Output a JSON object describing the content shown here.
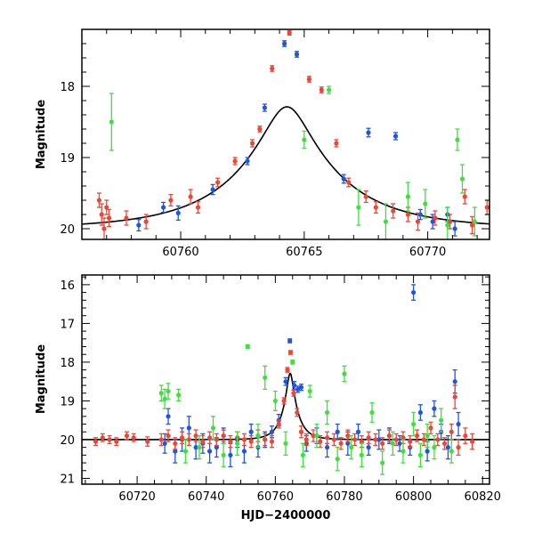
{
  "chart_data": [
    {
      "type": "scatter",
      "title": "",
      "xlabel": "",
      "ylabel": "Magnitude",
      "xlim": [
        60756,
        60772.5
      ],
      "ylim": [
        20.15,
        17.2
      ],
      "y_inverted": true,
      "xticks": [
        60760,
        60765,
        60770
      ],
      "yticks": [
        18,
        19,
        20
      ],
      "grid": false,
      "legend": "none",
      "model_curve": {
        "t0": 60764.3,
        "u0": 0.21,
        "tE": 4.2,
        "baseline": 20.0,
        "color": "#000000"
      },
      "series": [
        {
          "color": "#1f56e0",
          "points": [
            [
              60758.3,
              19.95,
              0.08
            ],
            [
              60759.3,
              19.7,
              0.07
            ],
            [
              60759.9,
              19.78,
              0.1
            ],
            [
              60761.3,
              19.45,
              0.07
            ],
            [
              60762.7,
              19.05,
              0.05
            ],
            [
              60763.4,
              18.3,
              0.05
            ],
            [
              60764.2,
              17.4,
              0.04
            ],
            [
              60764.7,
              17.55,
              0.04
            ],
            [
              60766.6,
              19.3,
              0.06
            ],
            [
              60767.6,
              18.65,
              0.06
            ],
            [
              60768.7,
              18.7,
              0.05
            ],
            [
              60769.7,
              19.8,
              0.07
            ],
            [
              60770.2,
              19.9,
              0.1
            ],
            [
              60770.8,
              19.8,
              0.1
            ],
            [
              60771.1,
              20.0,
              0.1
            ]
          ]
        },
        {
          "color": "#f04535",
          "points": [
            [
              60756.7,
              19.6,
              0.1
            ],
            [
              60756.8,
              19.8,
              0.15
            ],
            [
              60756.9,
              20.0,
              0.15
            ],
            [
              60757.0,
              19.7,
              0.1
            ],
            [
              60757.1,
              19.85,
              0.12
            ],
            [
              60757.8,
              19.85,
              0.1
            ],
            [
              60758.6,
              19.9,
              0.1
            ],
            [
              60759.6,
              19.6,
              0.08
            ],
            [
              60760.4,
              19.55,
              0.1
            ],
            [
              60760.7,
              19.7,
              0.08
            ],
            [
              60761.5,
              19.35,
              0.06
            ],
            [
              60762.2,
              19.05,
              0.05
            ],
            [
              60762.9,
              18.8,
              0.05
            ],
            [
              60763.2,
              18.6,
              0.04
            ],
            [
              60763.7,
              17.75,
              0.04
            ],
            [
              60764.4,
              17.25,
              0.03
            ],
            [
              60765.2,
              17.9,
              0.04
            ],
            [
              60765.7,
              18.05,
              0.04
            ],
            [
              60766.3,
              18.8,
              0.05
            ],
            [
              60766.8,
              19.35,
              0.06
            ],
            [
              60767.5,
              19.55,
              0.08
            ],
            [
              60767.9,
              19.7,
              0.08
            ],
            [
              60768.6,
              19.75,
              0.1
            ],
            [
              60769.2,
              19.8,
              0.1
            ],
            [
              60769.6,
              19.9,
              0.12
            ],
            [
              60770.3,
              19.85,
              0.1
            ],
            [
              60770.9,
              19.9,
              0.1
            ],
            [
              60771.5,
              19.55,
              0.1
            ],
            [
              60771.8,
              19.95,
              0.12
            ],
            [
              60772.4,
              19.7,
              0.1
            ]
          ]
        },
        {
          "color": "#3ee03e",
          "points": [
            [
              60757.2,
              18.5,
              0.4
            ],
            [
              60765.0,
              18.75,
              0.12
            ],
            [
              60766.0,
              18.05,
              0.05
            ],
            [
              60767.2,
              19.7,
              0.25
            ],
            [
              60768.3,
              19.9,
              0.25
            ],
            [
              60769.2,
              19.55,
              0.2
            ],
            [
              60769.9,
              19.65,
              0.2
            ],
            [
              60770.8,
              19.95,
              0.25
            ],
            [
              60771.2,
              18.75,
              0.15
            ],
            [
              60771.4,
              19.3,
              0.2
            ],
            [
              60771.9,
              19.9,
              0.2
            ]
          ]
        }
      ]
    },
    {
      "type": "scatter",
      "title": "",
      "xlabel": "HJD−2400000",
      "ylabel": "Magnitude",
      "xlim": [
        60704,
        60822
      ],
      "ylim": [
        21.15,
        15.75
      ],
      "y_inverted": true,
      "xticks": [
        60720,
        60740,
        60760,
        60780,
        60800,
        60820
      ],
      "yticks": [
        16,
        17,
        18,
        19,
        20,
        21
      ],
      "grid": false,
      "legend": "none",
      "model_curve": {
        "t0": 60764.3,
        "u0": 0.21,
        "tE": 4.2,
        "baseline": 20.0,
        "color": "#000000"
      },
      "series": [
        {
          "color": "#1f56e0",
          "points": [
            [
              60728,
              20.1,
              0.25
            ],
            [
              60729,
              19.4,
              0.2
            ],
            [
              60731,
              20.3,
              0.3
            ],
            [
              60733,
              20.0,
              0.3
            ],
            [
              60735,
              19.7,
              0.3
            ],
            [
              60737,
              20.2,
              0.3
            ],
            [
              60739,
              20.1,
              0.25
            ],
            [
              60741,
              20.3,
              0.3
            ],
            [
              60743,
              20.2,
              0.25
            ],
            [
              60745,
              19.9,
              0.2
            ],
            [
              60747,
              20.4,
              0.3
            ],
            [
              60749,
              20.0,
              0.2
            ],
            [
              60751,
              20.3,
              0.3
            ],
            [
              60753,
              19.8,
              0.2
            ],
            [
              60755,
              20.2,
              0.25
            ],
            [
              60757,
              20.0,
              0.2
            ],
            [
              60759,
              19.8,
              0.15
            ],
            [
              60761,
              19.5,
              0.15
            ],
            [
              60763,
              18.5,
              0.1
            ],
            [
              60764.2,
              17.45,
              0.05
            ],
            [
              60765.5,
              18.6,
              0.1
            ],
            [
              60766.5,
              18.7,
              0.08
            ],
            [
              60767.5,
              18.65,
              0.08
            ],
            [
              60769,
              20.1,
              0.2
            ],
            [
              60772,
              19.9,
              0.2
            ],
            [
              60775,
              20.2,
              0.25
            ],
            [
              60778,
              19.8,
              0.2
            ],
            [
              60781,
              20.1,
              0.3
            ],
            [
              60784,
              19.8,
              0.2
            ],
            [
              60787,
              20.2,
              0.2
            ],
            [
              60790,
              20.0,
              0.25
            ],
            [
              60793,
              19.9,
              0.2
            ],
            [
              60796,
              20.1,
              0.2
            ],
            [
              60799,
              20.2,
              0.2
            ],
            [
              60800,
              16.2,
              0.2
            ],
            [
              60802,
              19.3,
              0.2
            ],
            [
              60804,
              20.3,
              0.25
            ],
            [
              60806,
              19.2,
              0.2
            ],
            [
              60808,
              19.8,
              0.2
            ],
            [
              60810,
              20.2,
              0.3
            ],
            [
              60812,
              18.5,
              0.3
            ],
            [
              60813,
              19.6,
              0.3
            ]
          ]
        },
        {
          "color": "#f04535",
          "points": [
            [
              60708,
              20.05,
              0.1
            ],
            [
              60710,
              19.95,
              0.1
            ],
            [
              60712,
              20.0,
              0.1
            ],
            [
              60714,
              20.05,
              0.1
            ],
            [
              60717,
              19.9,
              0.1
            ],
            [
              60719,
              19.95,
              0.1
            ],
            [
              60723,
              20.05,
              0.12
            ],
            [
              60727,
              20.0,
              0.15
            ],
            [
              60729,
              19.9,
              0.15
            ],
            [
              60731,
              20.1,
              0.15
            ],
            [
              60733,
              19.95,
              0.15
            ],
            [
              60735,
              20.0,
              0.15
            ],
            [
              60737,
              19.9,
              0.15
            ],
            [
              60739,
              20.05,
              0.15
            ],
            [
              60741,
              19.95,
              0.15
            ],
            [
              60743,
              20.0,
              0.15
            ],
            [
              60745,
              19.9,
              0.15
            ],
            [
              60747,
              20.05,
              0.15
            ],
            [
              60749,
              19.95,
              0.15
            ],
            [
              60751,
              20.0,
              0.15
            ],
            [
              60753,
              20.05,
              0.15
            ],
            [
              60755,
              19.9,
              0.15
            ],
            [
              60757,
              20.0,
              0.15
            ],
            [
              60759,
              20.05,
              0.15
            ],
            [
              60761,
              19.6,
              0.1
            ],
            [
              60762.5,
              19.0,
              0.08
            ],
            [
              60763.5,
              18.2,
              0.06
            ],
            [
              60764.4,
              17.75,
              0.05
            ],
            [
              60765.3,
              18.8,
              0.08
            ],
            [
              60766.3,
              19.3,
              0.1
            ],
            [
              60767.5,
              19.8,
              0.15
            ],
            [
              60769,
              20.0,
              0.15
            ],
            [
              60771,
              19.9,
              0.15
            ],
            [
              60773,
              20.05,
              0.15
            ],
            [
              60775,
              19.95,
              0.15
            ],
            [
              60777,
              20.0,
              0.15
            ],
            [
              60779,
              20.1,
              0.15
            ],
            [
              60781,
              19.9,
              0.15
            ],
            [
              60783,
              20.0,
              0.15
            ],
            [
              60785,
              20.05,
              0.15
            ],
            [
              60787,
              19.95,
              0.15
            ],
            [
              60789,
              20.0,
              0.15
            ],
            [
              60791,
              20.1,
              0.15
            ],
            [
              60793,
              19.9,
              0.15
            ],
            [
              60795,
              20.0,
              0.15
            ],
            [
              60797,
              19.95,
              0.15
            ],
            [
              60799,
              20.05,
              0.15
            ],
            [
              60801,
              19.9,
              0.15
            ],
            [
              60803,
              20.0,
              0.15
            ],
            [
              60805,
              19.7,
              0.15
            ],
            [
              60807,
              20.0,
              0.15
            ],
            [
              60809,
              20.1,
              0.15
            ],
            [
              60811,
              19.8,
              0.2
            ],
            [
              60812,
              18.9,
              0.3
            ],
            [
              60813,
              20.2,
              0.2
            ],
            [
              60815,
              19.9,
              0.2
            ],
            [
              60817,
              20.05,
              0.2
            ]
          ]
        },
        {
          "color": "#3ee03e",
          "points": [
            [
              60727,
              18.8,
              0.2
            ],
            [
              60728,
              18.95,
              0.25
            ],
            [
              60729,
              18.75,
              0.2
            ],
            [
              60732,
              18.85,
              0.15
            ],
            [
              60734,
              20.3,
              0.3
            ],
            [
              60738,
              20.2,
              0.3
            ],
            [
              60742,
              19.7,
              0.3
            ],
            [
              60745,
              20.4,
              0.3
            ],
            [
              60749,
              20.1,
              0.3
            ],
            [
              60752,
              17.6,
              0.05
            ],
            [
              60755,
              19.9,
              0.3
            ],
            [
              60757,
              18.4,
              0.3
            ],
            [
              60760,
              19.0,
              0.25
            ],
            [
              60763,
              20.1,
              0.3
            ],
            [
              60765,
              18.0,
              0.05
            ],
            [
              60768,
              20.4,
              0.3
            ],
            [
              60770,
              18.75,
              0.15
            ],
            [
              60772,
              19.9,
              0.3
            ],
            [
              60775,
              19.3,
              0.3
            ],
            [
              60778,
              20.5,
              0.3
            ],
            [
              60780,
              18.3,
              0.2
            ],
            [
              60782,
              20.2,
              0.3
            ],
            [
              60785,
              20.4,
              0.3
            ],
            [
              60788,
              19.3,
              0.25
            ],
            [
              60791,
              20.6,
              0.3
            ],
            [
              60794,
              20.1,
              0.3
            ],
            [
              60797,
              20.3,
              0.3
            ],
            [
              60800,
              19.6,
              0.3
            ],
            [
              60802,
              20.4,
              0.3
            ],
            [
              60804,
              19.9,
              0.3
            ],
            [
              60806,
              20.2,
              0.3
            ],
            [
              60808,
              19.5,
              0.3
            ],
            [
              60811,
              20.3,
              0.3
            ]
          ]
        }
      ]
    }
  ]
}
